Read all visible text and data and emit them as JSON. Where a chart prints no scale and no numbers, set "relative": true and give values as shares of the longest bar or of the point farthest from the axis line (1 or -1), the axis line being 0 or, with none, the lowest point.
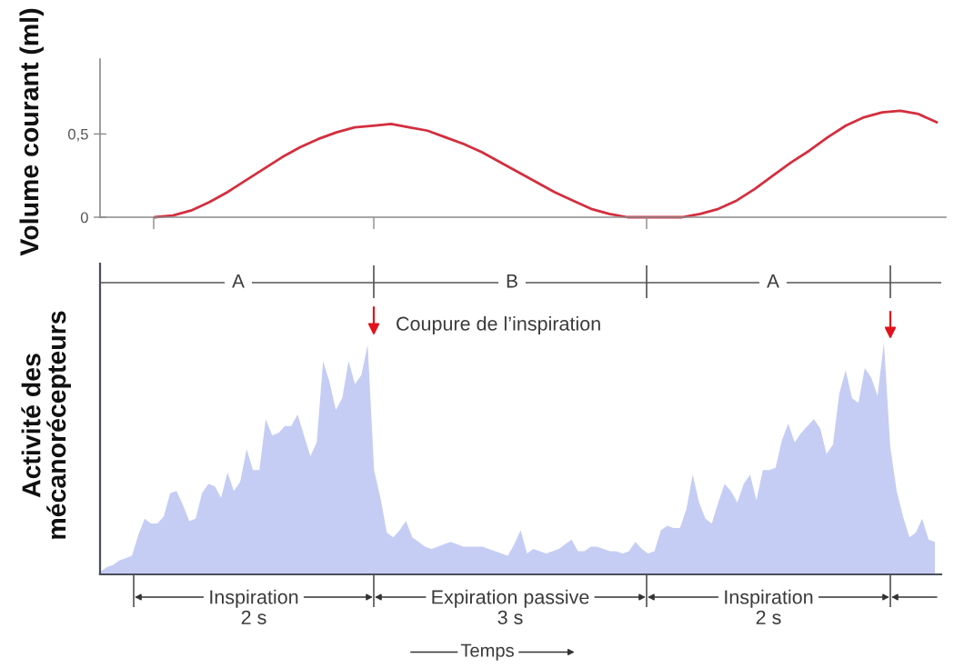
{
  "chart_data": [
    {
      "type": "line",
      "ylabel": "Volume courant (ml)",
      "tick_labels": "y",
      "categories": [
        null,
        null,
        null,
        null,
        null,
        null,
        null,
        null,
        null,
        null,
        null,
        null,
        null,
        null,
        null,
        null,
        null,
        null,
        null,
        null,
        null,
        null,
        null,
        null,
        null,
        null,
        null,
        null,
        null,
        null,
        null,
        null,
        null,
        null,
        null,
        null,
        null,
        null,
        null,
        null,
        null,
        null,
        null,
        null,
        null,
        null,
        null
      ],
      "series": [
        {
          "color": "#d32f3f",
          "values": [
            null,
            null,
            null,
            0,
            0.01,
            0.04,
            0.09,
            0.15,
            0.22,
            0.29,
            0.36,
            0.42,
            0.47,
            0.51,
            0.54,
            0.55,
            0.56,
            0.54,
            0.52,
            0.48,
            0.44,
            0.39,
            0.33,
            0.27,
            0.21,
            0.15,
            0.1,
            0.05,
            0.02,
            0,
            0,
            0,
            0,
            0.02,
            0.05,
            0.1,
            0.17,
            0.25,
            0.33,
            0.4,
            0.48,
            0.55,
            0.6,
            0.63,
            0.64,
            0.62,
            0.57
          ]
        }
      ],
      "ylim": [
        0,
        0.95
      ],
      "yticks": [
        0,
        {
          "value": 0.5,
          "label": "0,5"
        }
      ]
    },
    {
      "type": "area",
      "relative": true,
      "tick_labels": false,
      "ylabel": "Activité des\nmécanorécepteurs",
      "xlabel": "Temps",
      "categories": [
        null,
        null,
        null,
        null,
        null,
        null,
        null,
        null,
        null,
        null,
        null,
        null,
        null,
        null,
        null,
        null,
        null,
        null,
        null,
        null,
        null,
        null,
        null,
        null,
        null,
        null,
        null,
        null,
        null,
        null,
        null,
        null,
        null,
        null,
        null,
        null,
        null,
        null,
        null,
        null,
        null,
        null,
        null,
        null,
        null,
        null,
        null,
        null,
        null,
        null,
        null,
        null,
        null,
        null,
        null,
        null,
        null,
        null,
        null,
        null,
        null,
        null,
        null,
        null,
        null,
        null,
        null,
        null,
        null,
        null,
        null,
        null,
        null,
        null,
        null,
        null,
        null,
        null,
        null,
        null,
        null,
        null,
        null,
        null,
        null,
        null,
        null,
        null,
        null,
        null,
        null,
        null,
        null,
        null,
        null,
        null,
        null,
        null,
        null,
        null,
        null,
        null,
        null,
        null,
        null,
        null,
        null,
        null,
        null,
        null,
        null,
        null,
        null,
        null,
        null,
        null,
        null,
        null,
        null,
        null,
        null,
        null,
        null,
        null,
        null,
        null,
        null,
        null,
        null,
        null,
        null,
        null
      ],
      "series": [
        {
          "color": "#c5cdf4",
          "values": [
            0.01,
            0.03,
            0.04,
            0.06,
            0.07,
            0.08,
            0.17,
            0.24,
            0.22,
            0.22,
            0.25,
            0.35,
            0.36,
            0.3,
            0.23,
            0.24,
            0.35,
            0.39,
            0.38,
            0.33,
            0.44,
            0.36,
            0.4,
            0.54,
            0.45,
            0.45,
            0.67,
            0.6,
            0.61,
            0.64,
            0.64,
            0.69,
            0.6,
            0.51,
            0.57,
            0.92,
            0.83,
            0.71,
            0.76,
            0.92,
            0.82,
            0.86,
            0.99,
            0.45,
            0.33,
            0.18,
            0.16,
            0.19,
            0.23,
            0.16,
            0.14,
            0.12,
            0.11,
            0.12,
            0.13,
            0.14,
            0.13,
            0.12,
            0.12,
            0.12,
            0.12,
            0.11,
            0.1,
            0.09,
            0.08,
            0.13,
            0.19,
            0.09,
            0.11,
            0.1,
            0.09,
            0.1,
            0.11,
            0.13,
            0.15,
            0.1,
            0.1,
            0.12,
            0.12,
            0.11,
            0.1,
            0.1,
            0.09,
            0.1,
            0.14,
            0.11,
            0.09,
            0.1,
            0.19,
            0.21,
            0.2,
            0.2,
            0.28,
            0.43,
            0.31,
            0.24,
            0.22,
            0.31,
            0.39,
            0.36,
            0.31,
            0.39,
            0.43,
            0.32,
            0.45,
            0.45,
            0.46,
            0.58,
            0.65,
            0.57,
            0.61,
            0.64,
            0.67,
            0.63,
            0.52,
            0.56,
            0.78,
            0.88,
            0.76,
            0.74,
            0.89,
            0.85,
            0.77,
            1,
            0.55,
            0.36,
            0.25,
            0.16,
            0.18,
            0.24,
            0.15,
            0.14
          ]
        }
      ],
      "annotations": [
        "A",
        "B",
        "A",
        "Coupure de l’inspiration",
        "Inspiration\n2 s",
        "Expiration passive\n3 s",
        "Inspiration\n2 s"
      ]
    }
  ]
}
